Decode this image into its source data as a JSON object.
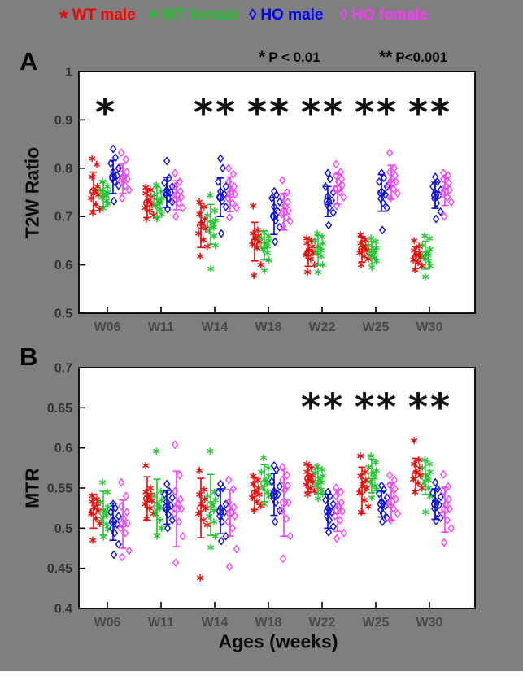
{
  "figure": {
    "background": "#7f7f7f",
    "xlabel": "Ages (weeks)",
    "legend": [
      {
        "marker": "*",
        "label": "WT male",
        "color": "#f40000"
      },
      {
        "marker": "*",
        "label": "WT female",
        "color": "#1fc42f"
      },
      {
        "marker": "◊",
        "label": "HO male",
        "color": "#0202f0"
      },
      {
        "marker": "◊",
        "label": "HO female",
        "color": "#f83df8"
      }
    ],
    "annotations": [
      {
        "symbol": "*",
        "text": "P < 0.01"
      },
      {
        "symbol": "**",
        "text": "P<0.001"
      }
    ]
  },
  "chart_data": [
    {
      "panel_label": "A",
      "type": "scatter",
      "ylabel": "T2W Ratio",
      "ylim": [
        0.5,
        1.0
      ],
      "yticks": [
        1,
        0.9,
        0.8,
        0.7,
        0.6,
        0.5
      ],
      "ytick_labels": [
        "1",
        "0.9",
        "0.8",
        "0.7",
        "0.6",
        "0.5"
      ],
      "categories": [
        "W06",
        "W11",
        "W14",
        "W18",
        "W22",
        "W25",
        "W30"
      ],
      "significance": [
        "*",
        "",
        "**",
        "**",
        "**",
        "**",
        "**"
      ],
      "sig_value": 0.92,
      "series": [
        {
          "name": "WT male",
          "color": "#f40000",
          "marker": "asterisk",
          "means": [
            0.752,
            0.728,
            0.682,
            0.648,
            0.625,
            0.632,
            0.615
          ],
          "sd": [
            0.04,
            0.03,
            0.046,
            0.04,
            0.028,
            0.026,
            0.023
          ],
          "points": [
            [
              0.82,
              0.808,
              0.782,
              0.762,
              0.752,
              0.745,
              0.738,
              0.725,
              0.715,
              0.708
            ],
            [
              0.76,
              0.755,
              0.748,
              0.74,
              0.732,
              0.725,
              0.718,
              0.712,
              0.703,
              0.695
            ],
            [
              0.73,
              0.72,
              0.705,
              0.695,
              0.685,
              0.675,
              0.665,
              0.652,
              0.638,
              0.618
            ],
            [
              0.722,
              0.672,
              0.665,
              0.66,
              0.655,
              0.648,
              0.642,
              0.635,
              0.6,
              0.578
            ],
            [
              0.655,
              0.65,
              0.645,
              0.638,
              0.63,
              0.625,
              0.62,
              0.612,
              0.6,
              0.585
            ],
            [
              0.662,
              0.652,
              0.645,
              0.64,
              0.635,
              0.63,
              0.625,
              0.618,
              0.612,
              0.6
            ],
            [
              0.65,
              0.638,
              0.63,
              0.625,
              0.62,
              0.615,
              0.61,
              0.605,
              0.598,
              0.59
            ]
          ]
        },
        {
          "name": "WT female",
          "color": "#1fc42f",
          "marker": "asterisk",
          "means": [
            0.747,
            0.73,
            0.684,
            0.64,
            0.63,
            0.625,
            0.62
          ],
          "sd": [
            0.026,
            0.031,
            0.041,
            0.03,
            0.031,
            0.023,
            0.029
          ],
          "points": [
            [
              0.772,
              0.762,
              0.755,
              0.75,
              0.747,
              0.743,
              0.739,
              0.733,
              0.727,
              0.717
            ],
            [
              0.765,
              0.752,
              0.745,
              0.738,
              0.732,
              0.728,
              0.722,
              0.715,
              0.705,
              0.695
            ],
            [
              0.744,
              0.712,
              0.702,
              0.692,
              0.685,
              0.678,
              0.67,
              0.66,
              0.64,
              0.592
            ],
            [
              0.668,
              0.66,
              0.655,
              0.65,
              0.645,
              0.638,
              0.632,
              0.625,
              0.61,
              0.588
            ],
            [
              0.665,
              0.658,
              0.65,
              0.645,
              0.638,
              0.63,
              0.625,
              0.618,
              0.6,
              0.585
            ],
            [
              0.655,
              0.648,
              0.64,
              0.635,
              0.63,
              0.625,
              0.62,
              0.615,
              0.608,
              0.595
            ],
            [
              0.66,
              0.655,
              0.64,
              0.632,
              0.625,
              0.62,
              0.615,
              0.608,
              0.598,
              0.575
            ]
          ]
        },
        {
          "name": "HO male",
          "color": "#0202f0",
          "marker": "diamond",
          "means": [
            0.782,
            0.75,
            0.74,
            0.701,
            0.731,
            0.749,
            0.744
          ],
          "sd": [
            0.034,
            0.031,
            0.04,
            0.038,
            0.031,
            0.038,
            0.027
          ],
          "points": [
            [
              0.84,
              0.822,
              0.81,
              0.8,
              0.792,
              0.785,
              0.778,
              0.772,
              0.764,
              0.732
            ],
            [
              0.815,
              0.78,
              0.77,
              0.762,
              0.755,
              0.75,
              0.745,
              0.738,
              0.73,
              0.715
            ],
            [
              0.82,
              0.8,
              0.772,
              0.762,
              0.752,
              0.746,
              0.74,
              0.732,
              0.72,
              0.665
            ],
            [
              0.752,
              0.745,
              0.738,
              0.73,
              0.72,
              0.71,
              0.7,
              0.692,
              0.678,
              0.648
            ],
            [
              0.79,
              0.778,
              0.762,
              0.75,
              0.742,
              0.733,
              0.725,
              0.718,
              0.708,
              0.682
            ],
            [
              0.79,
              0.78,
              0.772,
              0.762,
              0.752,
              0.745,
              0.737,
              0.728,
              0.718,
              0.672
            ],
            [
              0.782,
              0.772,
              0.762,
              0.755,
              0.75,
              0.744,
              0.737,
              0.728,
              0.71,
              0.695
            ]
          ]
        },
        {
          "name": "HO female",
          "color": "#f83df8",
          "marker": "diamond",
          "means": [
            0.779,
            0.744,
            0.746,
            0.71,
            0.757,
            0.771,
            0.752
          ],
          "sd": [
            0.031,
            0.03,
            0.036,
            0.038,
            0.031,
            0.035,
            0.029
          ],
          "points": [
            [
              0.832,
              0.818,
              0.8,
              0.792,
              0.785,
              0.778,
              0.772,
              0.764,
              0.755,
              0.738
            ],
            [
              0.79,
              0.772,
              0.762,
              0.752,
              0.745,
              0.74,
              0.734,
              0.728,
              0.718,
              0.7
            ],
            [
              0.8,
              0.788,
              0.772,
              0.762,
              0.752,
              0.746,
              0.738,
              0.728,
              0.718,
              0.698
            ],
            [
              0.775,
              0.75,
              0.74,
              0.73,
              0.722,
              0.712,
              0.705,
              0.698,
              0.69,
              0.68
            ],
            [
              0.808,
              0.792,
              0.785,
              0.778,
              0.772,
              0.765,
              0.757,
              0.75,
              0.74,
              0.722
            ],
            [
              0.832,
              0.8,
              0.792,
              0.785,
              0.778,
              0.772,
              0.764,
              0.757,
              0.748,
              0.738
            ],
            [
              0.79,
              0.785,
              0.778,
              0.77,
              0.762,
              0.755,
              0.747,
              0.74,
              0.73,
              0.7
            ]
          ]
        }
      ]
    },
    {
      "panel_label": "B",
      "type": "scatter",
      "ylabel": "MTR",
      "ylim": [
        0.4,
        0.7
      ],
      "yticks": [
        0.7,
        0.65,
        0.6,
        0.55,
        0.5,
        0.45,
        0.4
      ],
      "ytick_labels": [
        "0.7",
        "0.65",
        "0.6",
        "0.55",
        "0.5",
        "0.45",
        "0.4"
      ],
      "categories": [
        "W06",
        "W11",
        "W14",
        "W18",
        "W22",
        "W25",
        "W30"
      ],
      "significance": [
        "",
        "",
        "",
        "",
        "**",
        "**",
        "**"
      ],
      "sig_value": 0.654,
      "series": [
        {
          "name": "WT male",
          "color": "#f40000",
          "marker": "asterisk",
          "means": [
            0.521,
            0.537,
            0.525,
            0.543,
            0.562,
            0.547,
            0.567
          ],
          "sd": [
            0.021,
            0.027,
            0.037,
            0.02,
            0.017,
            0.029,
            0.02
          ],
          "points": [
            [
              0.54,
              0.536,
              0.533,
              0.53,
              0.526,
              0.522,
              0.518,
              0.512,
              0.506,
              0.485
            ],
            [
              0.578,
              0.55,
              0.545,
              0.542,
              0.538,
              0.534,
              0.53,
              0.525,
              0.518,
              0.512
            ],
            [
              0.572,
              0.548,
              0.542,
              0.536,
              0.53,
              0.525,
              0.518,
              0.51,
              0.504,
              0.438
            ],
            [
              0.565,
              0.56,
              0.555,
              0.55,
              0.545,
              0.542,
              0.538,
              0.533,
              0.528,
              0.522
            ],
            [
              0.58,
              0.575,
              0.57,
              0.566,
              0.562,
              0.558,
              0.554,
              0.55,
              0.546,
              0.542
            ],
            [
              0.59,
              0.57,
              0.565,
              0.56,
              0.555,
              0.55,
              0.544,
              0.535,
              0.527,
              0.52
            ],
            [
              0.609,
              0.585,
              0.58,
              0.575,
              0.57,
              0.566,
              0.561,
              0.556,
              0.55,
              0.545
            ]
          ]
        },
        {
          "name": "WT female",
          "color": "#1fc42f",
          "marker": "asterisk",
          "means": [
            0.519,
            0.527,
            0.529,
            0.556,
            0.559,
            0.565,
            0.563
          ],
          "sd": [
            0.027,
            0.034,
            0.038,
            0.023,
            0.016,
            0.021,
            0.021
          ],
          "points": [
            [
              0.557,
              0.545,
              0.532,
              0.526,
              0.521,
              0.516,
              0.511,
              0.505,
              0.499,
              0.489
            ],
            [
              0.596,
              0.546,
              0.54,
              0.535,
              0.53,
              0.525,
              0.518,
              0.51,
              0.5,
              0.49
            ],
            [
              0.596,
              0.545,
              0.54,
              0.535,
              0.529,
              0.522,
              0.515,
              0.508,
              0.49,
              0.476
            ],
            [
              0.588,
              0.575,
              0.57,
              0.565,
              0.56,
              0.556,
              0.55,
              0.545,
              0.54,
              0.53
            ],
            [
              0.577,
              0.573,
              0.569,
              0.565,
              0.561,
              0.557,
              0.553,
              0.548,
              0.543,
              0.537
            ],
            [
              0.59,
              0.582,
              0.576,
              0.572,
              0.568,
              0.563,
              0.558,
              0.553,
              0.548,
              0.538
            ],
            [
              0.585,
              0.58,
              0.575,
              0.57,
              0.565,
              0.56,
              0.556,
              0.55,
              0.54,
              0.52
            ]
          ]
        },
        {
          "name": "HO male",
          "color": "#0202f0",
          "marker": "diamond",
          "means": [
            0.508,
            0.526,
            0.521,
            0.542,
            0.521,
            0.53,
            0.53
          ],
          "sd": [
            0.023,
            0.021,
            0.028,
            0.026,
            0.021,
            0.016,
            0.019
          ],
          "points": [
            [
              0.53,
              0.525,
              0.52,
              0.515,
              0.51,
              0.505,
              0.5,
              0.494,
              0.48,
              0.467
            ],
            [
              0.555,
              0.546,
              0.542,
              0.538,
              0.533,
              0.528,
              0.523,
              0.517,
              0.51,
              0.5
            ],
            [
              0.555,
              0.55,
              0.544,
              0.53,
              0.525,
              0.52,
              0.515,
              0.508,
              0.49,
              0.484
            ],
            [
              0.578,
              0.573,
              0.558,
              0.552,
              0.546,
              0.542,
              0.537,
              0.532,
              0.522,
              0.508
            ],
            [
              0.545,
              0.54,
              0.535,
              0.53,
              0.525,
              0.52,
              0.515,
              0.51,
              0.502,
              0.495
            ],
            [
              0.553,
              0.548,
              0.543,
              0.538,
              0.533,
              0.528,
              0.523,
              0.518,
              0.513,
              0.508
            ],
            [
              0.557,
              0.549,
              0.544,
              0.539,
              0.534,
              0.529,
              0.524,
              0.519,
              0.513,
              0.509
            ]
          ]
        },
        {
          "name": "HO female",
          "color": "#f83df8",
          "marker": "diamond",
          "means": [
            0.505,
            0.524,
            0.519,
            0.532,
            0.522,
            0.533,
            0.523
          ],
          "sd": [
            0.03,
            0.047,
            0.029,
            0.042,
            0.026,
            0.023,
            0.028
          ],
          "points": [
            [
              0.557,
              0.54,
              0.527,
              0.52,
              0.512,
              0.506,
              0.5,
              0.494,
              0.472,
              0.464
            ],
            [
              0.604,
              0.566,
              0.546,
              0.536,
              0.53,
              0.524,
              0.518,
              0.508,
              0.49,
              0.457
            ],
            [
              0.56,
              0.549,
              0.532,
              0.526,
              0.52,
              0.515,
              0.508,
              0.5,
              0.474,
              0.452
            ],
            [
              0.576,
              0.566,
              0.56,
              0.553,
              0.547,
              0.532,
              0.522,
              0.512,
              0.49,
              0.462
            ],
            [
              0.55,
              0.545,
              0.54,
              0.532,
              0.526,
              0.521,
              0.515,
              0.51,
              0.494,
              0.487
            ],
            [
              0.566,
              0.56,
              0.554,
              0.549,
              0.542,
              0.536,
              0.53,
              0.524,
              0.518,
              0.51
            ],
            [
              0.567,
              0.552,
              0.546,
              0.536,
              0.53,
              0.524,
              0.518,
              0.51,
              0.5,
              0.482
            ]
          ]
        }
      ]
    }
  ]
}
